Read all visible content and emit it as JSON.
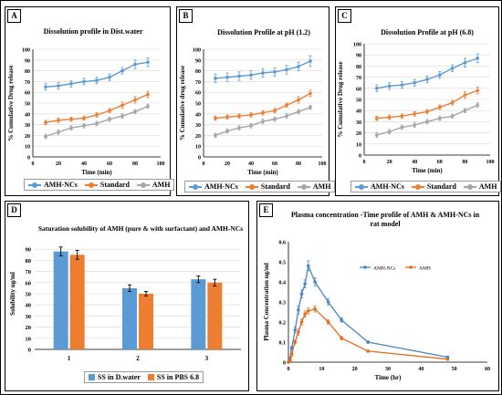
{
  "panels": {
    "A": {
      "label": "A"
    },
    "B": {
      "label": "B"
    },
    "C": {
      "label": "C"
    },
    "D": {
      "label": "D"
    },
    "E": {
      "label": "E"
    }
  },
  "colors": {
    "blue": "#5b9bd5",
    "orange": "#ed7d31",
    "gray": "#a5a5a5",
    "blueLine": "#4a86c5",
    "orangeLine": "#e46c1e"
  },
  "chart_data": [
    {
      "id": "A",
      "type": "line",
      "title": "Dissolution profile in Dist.water",
      "xlabel": "Time  (min)",
      "ylabel": "% Cumulative Drug release",
      "xlim": [
        0,
        100
      ],
      "ylim": [
        0,
        100
      ],
      "xticks": [
        0,
        20,
        40,
        60,
        80,
        100
      ],
      "yticks": [
        0,
        10,
        20,
        30,
        40,
        50,
        60,
        70,
        80,
        90,
        100
      ],
      "grid": true,
      "legend_position": "bottom",
      "x": [
        10,
        20,
        30,
        40,
        50,
        60,
        70,
        80,
        90
      ],
      "series": [
        {
          "name": "AMH-NCs",
          "values": [
            65,
            66,
            68,
            70,
            71,
            74,
            80,
            86,
            88
          ],
          "errors": [
            3,
            3,
            3,
            3,
            3,
            3,
            3,
            4,
            4
          ]
        },
        {
          "name": "Standard",
          "values": [
            32,
            34,
            35,
            36,
            39,
            43,
            48,
            53,
            58
          ],
          "errors": [
            2,
            2,
            2,
            2,
            2,
            2,
            3,
            3,
            3
          ]
        },
        {
          "name": "AMH",
          "values": [
            19,
            23,
            27,
            29,
            31,
            35,
            38,
            42,
            47
          ],
          "errors": [
            2,
            2,
            2,
            2,
            2,
            2,
            2,
            2,
            2
          ]
        }
      ]
    },
    {
      "id": "B",
      "type": "line",
      "title": "Dissolution Profile at pH (1.2)",
      "xlabel": "Time  (min)",
      "ylabel": "% Cumulative drug release",
      "xlim": [
        0,
        100
      ],
      "ylim": [
        0,
        100
      ],
      "xticks": [
        0,
        20,
        40,
        60,
        80,
        100
      ],
      "yticks": [
        0,
        10,
        20,
        30,
        40,
        50,
        60,
        70,
        80,
        90,
        100
      ],
      "grid": true,
      "legend_position": "bottom",
      "x": [
        10,
        20,
        30,
        40,
        50,
        60,
        70,
        80,
        90
      ],
      "series": [
        {
          "name": "AMH-NCs",
          "values": [
            73,
            74,
            75,
            76,
            78,
            79,
            81,
            84,
            89
          ],
          "errors": [
            4,
            4,
            4,
            4,
            4,
            4,
            4,
            4,
            5
          ]
        },
        {
          "name": "Standard",
          "values": [
            36,
            37,
            38,
            39,
            41,
            43,
            48,
            53,
            59
          ],
          "errors": [
            2,
            2,
            2,
            2,
            2,
            2,
            2,
            3,
            3
          ]
        },
        {
          "name": "AMH",
          "values": [
            20,
            24,
            27,
            29,
            33,
            35,
            38,
            42,
            46
          ],
          "errors": [
            2,
            2,
            2,
            2,
            2,
            2,
            2,
            2,
            2
          ]
        }
      ]
    },
    {
      "id": "C",
      "type": "line",
      "title": "Dissolution Profile at pH (6.8)",
      "xlabel": "Time  (min)",
      "ylabel": "% Cumulative Drug release",
      "xlim": [
        0,
        100
      ],
      "ylim": [
        0,
        100
      ],
      "xticks": [
        0,
        20,
        40,
        60,
        80,
        100
      ],
      "yticks": [
        0,
        10,
        20,
        30,
        40,
        50,
        60,
        70,
        80,
        90,
        100
      ],
      "grid": true,
      "legend_position": "bottom",
      "x": [
        10,
        20,
        30,
        40,
        50,
        60,
        70,
        80,
        90
      ],
      "series": [
        {
          "name": "AMH-NCs",
          "values": [
            60,
            62,
            63,
            65,
            68,
            72,
            78,
            83,
            87
          ],
          "errors": [
            3,
            3,
            3,
            3,
            3,
            3,
            3,
            4,
            4
          ]
        },
        {
          "name": "Standard",
          "values": [
            33,
            34,
            35,
            37,
            39,
            43,
            47,
            54,
            58
          ],
          "errors": [
            2,
            2,
            2,
            2,
            2,
            2,
            2,
            3,
            3
          ]
        },
        {
          "name": "AMH",
          "values": [
            18,
            21,
            25,
            27,
            30,
            33,
            35,
            40,
            45
          ],
          "errors": [
            2,
            2,
            2,
            2,
            2,
            2,
            2,
            2,
            2
          ]
        }
      ]
    },
    {
      "id": "D",
      "type": "bar",
      "title": "Saturation solubility of AMH (pure & with surfactant) and AMH-NCs",
      "xlabel": "",
      "ylabel": "Solubility ug/ml",
      "ylim": [
        0,
        100
      ],
      "yticks": [
        0,
        10,
        20,
        30,
        40,
        50,
        60,
        70,
        80,
        90
      ],
      "grid": true,
      "legend_position": "bottom",
      "categories": [
        "1",
        "2",
        "3"
      ],
      "series": [
        {
          "name": "SS in D.water",
          "values": [
            88,
            55,
            63
          ],
          "errors": [
            4,
            3,
            3
          ]
        },
        {
          "name": "SS in PBS 6.8",
          "values": [
            85,
            50,
            60
          ],
          "errors": [
            4,
            2,
            3
          ]
        }
      ]
    },
    {
      "id": "E",
      "type": "line",
      "title": "Plasma concentration -Time profile of AMH & AMH-NCs in rat model",
      "xlabel": "Time (hr)",
      "ylabel": "Plasma Concentration ug/ml",
      "xlim": [
        0,
        60
      ],
      "ylim": [
        0,
        0.6
      ],
      "xticks": [
        0,
        10,
        20,
        30,
        40,
        50,
        60
      ],
      "yticks": [
        0,
        0.1,
        0.2,
        0.3,
        0.4,
        0.5,
        0.6
      ],
      "grid": false,
      "legend_position": "top-right",
      "x": [
        0,
        0.5,
        1,
        2,
        3,
        4,
        5,
        6,
        8,
        12,
        16,
        24,
        48
      ],
      "series": [
        {
          "name": "AMH-NCs",
          "values": [
            0,
            0.02,
            0.07,
            0.16,
            0.26,
            0.34,
            0.39,
            0.48,
            0.4,
            0.3,
            0.21,
            0.1,
            0.025
          ],
          "errors": [
            0,
            0.005,
            0.01,
            0.015,
            0.02,
            0.02,
            0.02,
            0.025,
            0.02,
            0.015,
            0.01,
            0.006,
            0.004
          ]
        },
        {
          "name": "AMH",
          "values": [
            0,
            0.01,
            0.04,
            0.1,
            0.15,
            0.2,
            0.24,
            0.255,
            0.265,
            0.2,
            0.12,
            0.055,
            0.015
          ],
          "errors": [
            0,
            0.005,
            0.01,
            0.01,
            0.015,
            0.015,
            0.015,
            0.015,
            0.015,
            0.01,
            0.008,
            0.005,
            0.003
          ]
        }
      ]
    }
  ]
}
